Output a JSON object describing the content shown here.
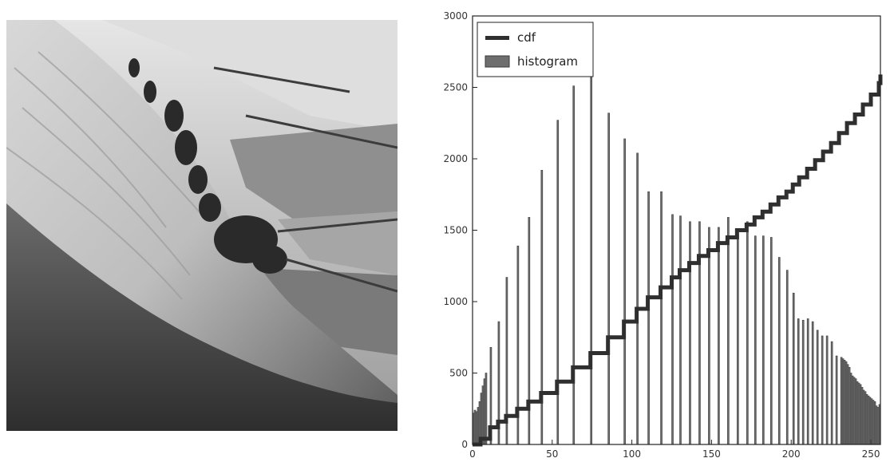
{
  "photo": {
    "subject": "grayscale landscape photograph of a steep grassy hillside with trees and fields"
  },
  "colors": {
    "histogram_fill": "#6e6e6e",
    "histogram_stroke": "#3a3a3a",
    "cdf_line": "#2f2f2f",
    "axis": "#222222"
  },
  "chart_data": {
    "type": "bar",
    "title": "",
    "xlabel": "",
    "ylabel": "",
    "xlim": [
      0,
      256
    ],
    "ylim": [
      0,
      3000
    ],
    "xticks": [
      0,
      50,
      100,
      150,
      200,
      250
    ],
    "yticks": [
      0,
      500,
      1000,
      1500,
      2000,
      2500,
      3000
    ],
    "xtick_labels": [
      "0",
      "50",
      "100",
      "150",
      "200",
      "250"
    ],
    "ytick_labels": [
      "0",
      "500",
      "1000",
      "1500",
      "2000",
      "2500",
      "3000"
    ],
    "grid": false,
    "legend": {
      "placement": "top-left",
      "entries": [
        "cdf",
        "histogram"
      ]
    },
    "series": [
      {
        "name": "histogram",
        "type": "bar",
        "bin_width": 1,
        "points": [
          [
            0,
            220
          ],
          [
            1,
            240
          ],
          [
            2,
            230
          ],
          [
            3,
            260
          ],
          [
            4,
            300
          ],
          [
            5,
            360
          ],
          [
            6,
            410
          ],
          [
            7,
            460
          ],
          [
            8,
            500
          ],
          [
            11,
            680
          ],
          [
            16,
            860
          ],
          [
            21,
            1170
          ],
          [
            28,
            1390
          ],
          [
            35,
            1590
          ],
          [
            43,
            1920
          ],
          [
            53,
            2270
          ],
          [
            63,
            2510
          ],
          [
            74,
            2580
          ],
          [
            85,
            2320
          ],
          [
            95,
            2140
          ],
          [
            103,
            2040
          ],
          [
            110,
            1770
          ],
          [
            118,
            1770
          ],
          [
            125,
            1610
          ],
          [
            130,
            1600
          ],
          [
            136,
            1560
          ],
          [
            142,
            1560
          ],
          [
            148,
            1520
          ],
          [
            154,
            1520
          ],
          [
            160,
            1590
          ],
          [
            166,
            1470
          ],
          [
            172,
            1560
          ],
          [
            177,
            1460
          ],
          [
            182,
            1460
          ],
          [
            187,
            1450
          ],
          [
            192,
            1310
          ],
          [
            197,
            1220
          ],
          [
            201,
            1060
          ],
          [
            204,
            880
          ],
          [
            207,
            870
          ],
          [
            210,
            880
          ],
          [
            213,
            860
          ],
          [
            216,
            800
          ],
          [
            219,
            760
          ],
          [
            222,
            760
          ],
          [
            225,
            720
          ],
          [
            228,
            620
          ],
          [
            231,
            610
          ],
          [
            234,
            580
          ],
          [
            237,
            500
          ],
          [
            240,
            460
          ],
          [
            243,
            420
          ],
          [
            246,
            370
          ],
          [
            249,
            330
          ],
          [
            252,
            300
          ],
          [
            255,
            280
          ],
          [
            232,
            600
          ],
          [
            233,
            590
          ],
          [
            235,
            560
          ],
          [
            236,
            540
          ],
          [
            238,
            480
          ],
          [
            239,
            470
          ],
          [
            241,
            440
          ],
          [
            242,
            430
          ],
          [
            244,
            400
          ],
          [
            245,
            380
          ],
          [
            247,
            350
          ],
          [
            248,
            340
          ],
          [
            250,
            320
          ],
          [
            251,
            310
          ],
          [
            253,
            270
          ],
          [
            254,
            260
          ]
        ]
      },
      {
        "name": "cdf",
        "type": "step",
        "x": [
          0,
          5,
          11,
          16,
          21,
          28,
          35,
          43,
          53,
          63,
          74,
          85,
          95,
          103,
          110,
          118,
          125,
          130,
          136,
          142,
          148,
          154,
          160,
          166,
          172,
          177,
          182,
          187,
          192,
          197,
          201,
          205,
          210,
          215,
          220,
          225,
          230,
          235,
          240,
          245,
          250,
          255,
          256
        ],
        "y": [
          0,
          40,
          120,
          160,
          200,
          250,
          300,
          360,
          440,
          540,
          640,
          750,
          860,
          950,
          1030,
          1100,
          1170,
          1220,
          1270,
          1320,
          1360,
          1410,
          1450,
          1500,
          1540,
          1590,
          1630,
          1680,
          1730,
          1770,
          1820,
          1870,
          1930,
          1990,
          2050,
          2110,
          2180,
          2250,
          2310,
          2380,
          2450,
          2530,
          2590
        ]
      }
    ]
  }
}
